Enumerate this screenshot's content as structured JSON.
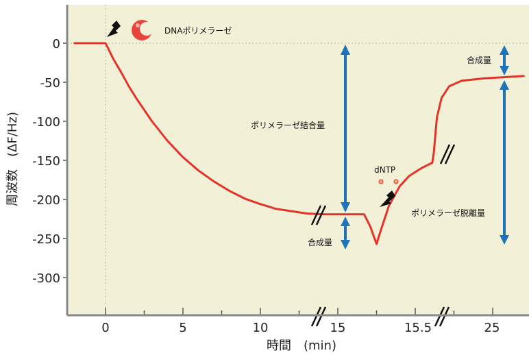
{
  "chart_data": {
    "type": "line",
    "title": "",
    "xlabel": "時間　(min)",
    "ylabel": "周波数　(ΔF/Hz)",
    "x_tick_labels": [
      "0",
      "5",
      "10",
      "15",
      "15.5",
      "25"
    ],
    "y_tick_labels": [
      "0",
      "-50",
      "-100",
      "-150",
      "-200",
      "-250",
      "-300"
    ],
    "ylim": [
      -350,
      45
    ],
    "grid": false,
    "background": "#f3f0d8",
    "line_color": "#e3342a",
    "arrow_color": "#1f73b7",
    "series": [
      {
        "points": [
          [
            -2,
            0
          ],
          [
            0,
            0
          ],
          [
            0.5,
            -20
          ],
          [
            1,
            -37
          ],
          [
            1.5,
            -55
          ],
          [
            2,
            -71
          ],
          [
            3,
            -100
          ],
          [
            4,
            -125
          ],
          [
            5,
            -146
          ],
          [
            6,
            -163
          ],
          [
            7,
            -177
          ],
          [
            8,
            -189
          ],
          [
            9,
            -199
          ],
          [
            10,
            -206
          ],
          [
            11,
            -212
          ],
          [
            12,
            -215
          ],
          [
            13,
            -218
          ],
          [
            14,
            -219
          ],
          [
            16.7,
            -219
          ],
          [
            17.1,
            -235
          ],
          [
            17.5,
            -257
          ],
          [
            17.8,
            -238
          ],
          [
            18.3,
            -208
          ],
          [
            19,
            -183
          ],
          [
            19.6,
            -170
          ],
          [
            20.4,
            -160
          ],
          [
            21.1,
            -153
          ],
          [
            21.2,
            -140
          ],
          [
            21.4,
            -95
          ],
          [
            21.7,
            -70
          ],
          [
            22.2,
            -55
          ],
          [
            23,
            -48
          ],
          [
            24.5,
            -45
          ],
          [
            27,
            -42
          ]
        ]
      }
    ],
    "annotations": {
      "polymerase": "DNAポリメラーゼ",
      "binding": "ポリメラーゼ結合量",
      "synthesis_1": "合成量",
      "dntp": "dNTP",
      "synthesis_2": "合成量",
      "dissociation": "ポリメラーゼ脱離量"
    }
  }
}
